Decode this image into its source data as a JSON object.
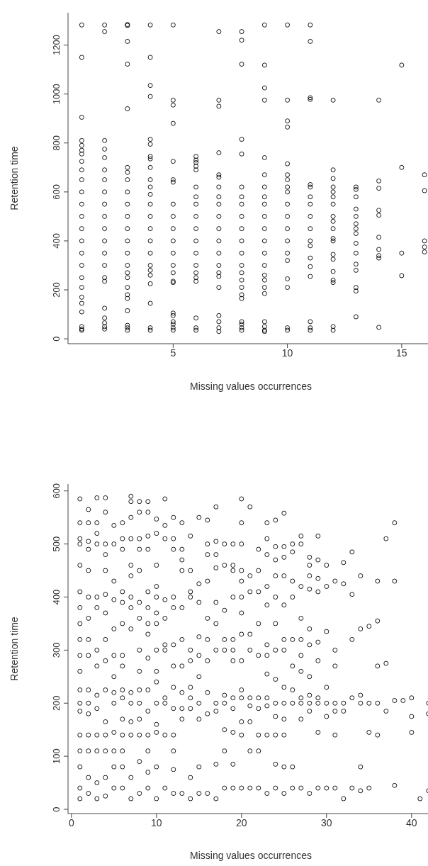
{
  "chart_data": [
    {
      "type": "scatter",
      "xlabel": "Missing values occurrences",
      "ylabel": "Retention time",
      "xlim": [
        0.4,
        16.4
      ],
      "ylim": [
        -20,
        1332
      ],
      "xticks": [
        5,
        10,
        15
      ],
      "yticks": [
        0,
        200,
        400,
        600,
        800,
        1000,
        1200
      ],
      "marker": "circle",
      "series": [
        {
          "color": "#000000",
          "x": [
            1,
            1,
            1,
            1,
            1,
            1,
            1,
            1,
            1,
            1,
            1,
            1,
            1,
            1,
            1,
            1,
            1,
            1,
            1,
            1,
            1,
            1,
            1,
            1,
            1,
            2,
            2,
            2,
            2,
            2,
            2,
            2,
            2,
            2,
            2,
            2,
            2,
            2,
            2,
            2,
            2,
            2,
            2,
            2,
            2,
            2,
            3,
            3,
            3,
            3,
            3,
            3,
            3,
            3,
            3,
            3,
            3,
            3,
            3,
            3,
            3,
            3,
            3,
            3,
            3,
            3,
            3,
            3,
            3,
            3,
            4,
            4,
            4,
            4,
            4,
            4,
            4,
            4,
            4,
            4,
            4,
            4,
            4,
            4,
            4,
            4,
            4,
            4,
            4,
            4,
            4,
            4,
            4,
            4,
            5,
            5,
            5,
            5,
            5,
            5,
            5,
            5,
            5,
            5,
            5,
            5,
            5,
            5,
            5,
            5,
            5,
            5,
            5,
            5,
            5,
            5,
            6,
            6,
            6,
            6,
            6,
            6,
            6,
            6,
            6,
            6,
            6,
            6,
            6,
            6,
            6,
            6,
            6,
            6,
            6,
            7,
            7,
            7,
            7,
            7,
            7,
            7,
            7,
            7,
            7,
            7,
            7,
            7,
            7,
            7,
            7,
            7,
            7,
            7,
            7,
            7,
            8,
            8,
            8,
            8,
            8,
            8,
            8,
            8,
            8,
            8,
            8,
            8,
            8,
            8,
            8,
            8,
            8,
            8,
            8,
            8,
            8,
            8,
            9,
            9,
            9,
            9,
            9,
            9,
            9,
            9,
            9,
            9,
            9,
            9,
            9,
            9,
            9,
            9,
            9,
            9,
            9,
            9,
            9,
            9,
            10,
            10,
            10,
            10,
            10,
            10,
            10,
            10,
            10,
            10,
            10,
            10,
            10,
            10,
            10,
            10,
            10,
            10,
            10,
            11,
            11,
            11,
            11,
            11,
            11,
            11,
            11,
            11,
            11,
            11,
            11,
            11,
            11,
            11,
            11,
            11,
            11,
            12,
            12,
            12,
            12,
            12,
            12,
            12,
            12,
            12,
            12,
            12,
            12,
            12,
            12,
            12,
            12,
            12,
            12,
            12,
            13,
            13,
            13,
            13,
            13,
            13,
            13,
            13,
            13,
            13,
            13,
            13,
            13,
            13,
            13,
            14,
            14,
            14,
            14,
            14,
            14,
            14,
            14,
            14,
            14,
            15,
            15,
            15,
            15,
            16,
            16,
            16,
            16,
            16
          ],
          "values": [
            1282,
            1150,
            905,
            810,
            790,
            770,
            755,
            725,
            690,
            650,
            600,
            550,
            500,
            450,
            400,
            350,
            300,
            250,
            210,
            170,
            145,
            110,
            50,
            40,
            35,
            1282,
            1255,
            810,
            775,
            740,
            690,
            650,
            600,
            550,
            500,
            450,
            400,
            350,
            300,
            250,
            235,
            125,
            85,
            65,
            50,
            40,
            1284,
            1280,
            1215,
            1122,
            940,
            700,
            680,
            650,
            600,
            550,
            500,
            450,
            400,
            350,
            300,
            270,
            250,
            210,
            180,
            165,
            115,
            55,
            45,
            35,
            1282,
            1150,
            1035,
            990,
            815,
            795,
            745,
            735,
            700,
            650,
            620,
            590,
            550,
            500,
            450,
            400,
            350,
            300,
            280,
            260,
            225,
            145,
            45,
            35,
            1282,
            975,
            955,
            880,
            725,
            650,
            640,
            550,
            500,
            450,
            400,
            350,
            300,
            270,
            235,
            230,
            105,
            95,
            70,
            60,
            45,
            35,
            745,
            730,
            720,
            705,
            690,
            620,
            580,
            550,
            500,
            450,
            400,
            350,
            300,
            270,
            250,
            235,
            85,
            45,
            35,
            1255,
            975,
            950,
            760,
            670,
            660,
            620,
            580,
            550,
            500,
            450,
            400,
            350,
            300,
            270,
            255,
            210,
            95,
            70,
            45,
            30,
            1255,
            1220,
            1122,
            815,
            755,
            620,
            580,
            550,
            500,
            450,
            400,
            350,
            300,
            270,
            240,
            210,
            180,
            165,
            70,
            60,
            45,
            35,
            1282,
            1118,
            1025,
            975,
            740,
            670,
            620,
            580,
            550,
            500,
            450,
            400,
            350,
            300,
            260,
            240,
            210,
            185,
            70,
            50,
            35,
            30,
            1282,
            975,
            890,
            865,
            715,
            670,
            650,
            620,
            600,
            550,
            500,
            450,
            400,
            350,
            320,
            245,
            210,
            45,
            35,
            1282,
            1215,
            985,
            978,
            630,
            620,
            580,
            550,
            500,
            450,
            400,
            380,
            330,
            295,
            255,
            70,
            45,
            35,
            975,
            690,
            655,
            620,
            600,
            580,
            550,
            500,
            480,
            450,
            410,
            400,
            345,
            325,
            275,
            240,
            230,
            50,
            35,
            620,
            610,
            580,
            530,
            500,
            470,
            450,
            430,
            390,
            350,
            305,
            280,
            210,
            195,
            90,
            975,
            645,
            615,
            525,
            505,
            415,
            365,
            340,
            330,
            47,
            1118,
            700,
            350,
            258,
            670,
            605,
            400,
            375,
            355
          ]
        }
      ]
    },
    {
      "type": "scatter",
      "xlabel": "Missing values occurrences",
      "ylabel": "Retention time",
      "xlim": [
        -0.4,
        42.6
      ],
      "ylim": [
        -8,
        613
      ],
      "xticks": [
        0,
        10,
        20,
        30,
        40
      ],
      "yticks": [
        0,
        100,
        200,
        300,
        400,
        500,
        600
      ],
      "marker": "circle",
      "series": [
        {
          "color": "#000000",
          "x": [
            1,
            1,
            1,
            1,
            1,
            1,
            1,
            1,
            1,
            1,
            1,
            1,
            1,
            1,
            1,
            1,
            1,
            1,
            1,
            2,
            2,
            2,
            2,
            2,
            2,
            2,
            2,
            2,
            2,
            2,
            2,
            2,
            2,
            2,
            2,
            3,
            3,
            3,
            3,
            3,
            3,
            3,
            3,
            3,
            3,
            3,
            3,
            3,
            3,
            4,
            4,
            4,
            4,
            4,
            4,
            4,
            4,
            4,
            4,
            4,
            4,
            4,
            4,
            4,
            5,
            5,
            5,
            5,
            5,
            5,
            5,
            5,
            5,
            5,
            5,
            5,
            5,
            6,
            6,
            6,
            6,
            6,
            6,
            6,
            6,
            6,
            6,
            6,
            6,
            6,
            6,
            6,
            7,
            7,
            7,
            7,
            7,
            7,
            7,
            7,
            7,
            7,
            7,
            7,
            7,
            7,
            7,
            8,
            8,
            8,
            8,
            8,
            8,
            8,
            8,
            8,
            8,
            8,
            8,
            8,
            8,
            8,
            9,
            9,
            9,
            9,
            9,
            9,
            9,
            9,
            9,
            9,
            9,
            9,
            9,
            9,
            9,
            10,
            10,
            10,
            10,
            10,
            10,
            10,
            10,
            10,
            10,
            10,
            10,
            10,
            10,
            10,
            11,
            11,
            11,
            11,
            11,
            11,
            11,
            11,
            11,
            11,
            11,
            12,
            12,
            12,
            12,
            12,
            12,
            12,
            12,
            12,
            12,
            12,
            12,
            12,
            13,
            13,
            13,
            13,
            13,
            13,
            13,
            13,
            13,
            13,
            13,
            14,
            14,
            14,
            14,
            14,
            14,
            14,
            14,
            14,
            14,
            14,
            15,
            15,
            15,
            15,
            15,
            15,
            15,
            15,
            15,
            15,
            16,
            16,
            16,
            16,
            16,
            16,
            16,
            16,
            16,
            16,
            17,
            17,
            17,
            17,
            17,
            17,
            17,
            17,
            17,
            17,
            17,
            18,
            18,
            18,
            18,
            18,
            18,
            18,
            18,
            18,
            18,
            19,
            19,
            19,
            19,
            19,
            19,
            19,
            19,
            19,
            19,
            19,
            19,
            20,
            20,
            20,
            20,
            20,
            20,
            20,
            20,
            20,
            20,
            20,
            20,
            20,
            20,
            21,
            21,
            21,
            21,
            21,
            21,
            21,
            21,
            21,
            21,
            22,
            22,
            22,
            22,
            22,
            22,
            22,
            22,
            22,
            22,
            23,
            23,
            23,
            23,
            23,
            23,
            23,
            23,
            23,
            23,
            23,
            23,
            24,
            24,
            24,
            24,
            24,
            24,
            24,
            24,
            24,
            24,
            24,
            24,
            24,
            25,
            25,
            25,
            25,
            25,
            25,
            25,
            25,
            25,
            25,
            25,
            25,
            25,
            26,
            26,
            26,
            26,
            26,
            26,
            26,
            26,
            26,
            26,
            27,
            27,
            27,
            27,
            27,
            27,
            27,
            27,
            27,
            27,
            27,
            28,
            28,
            28,
            28,
            28,
            28,
            28,
            28,
            28,
            28,
            28,
            29,
            29,
            29,
            29,
            29,
            29,
            29,
            29,
            29,
            29,
            30,
            30,
            30,
            30,
            30,
            30,
            30,
            31,
            31,
            31,
            31,
            31,
            31,
            31,
            32,
            32,
            32,
            32,
            32,
            33,
            33,
            33,
            33,
            33,
            34,
            34,
            34,
            34,
            34,
            34,
            35,
            35,
            35,
            35,
            36,
            36,
            36,
            36,
            36,
            37,
            37,
            37,
            38,
            38,
            38,
            38,
            39,
            40,
            40,
            40,
            41,
            42,
            42,
            42
          ],
          "values": [
            585,
            540,
            510,
            500,
            460,
            410,
            380,
            350,
            320,
            290,
            260,
            225,
            200,
            185,
            140,
            110,
            80,
            40,
            20,
            565,
            540,
            505,
            490,
            450,
            400,
            360,
            320,
            290,
            225,
            200,
            180,
            140,
            110,
            60,
            30,
            587,
            540,
            520,
            500,
            400,
            380,
            300,
            270,
            215,
            190,
            140,
            110,
            50,
            20,
            587,
            560,
            500,
            480,
            450,
            405,
            370,
            320,
            280,
            225,
            165,
            140,
            110,
            60,
            25,
            535,
            500,
            430,
            395,
            340,
            290,
            250,
            220,
            200,
            145,
            110,
            80,
            40,
            540,
            510,
            490,
            410,
            390,
            350,
            290,
            270,
            225,
            210,
            170,
            140,
            110,
            80,
            40,
            590,
            580,
            550,
            510,
            460,
            440,
            400,
            380,
            340,
            220,
            200,
            165,
            140,
            60,
            20,
            580,
            560,
            510,
            490,
            450,
            390,
            360,
            300,
            260,
            225,
            200,
            170,
            140,
            90,
            30,
            580,
            560,
            515,
            490,
            410,
            380,
            350,
            330,
            285,
            225,
            185,
            140,
            110,
            70,
            40,
            547,
            520,
            460,
            420,
            400,
            370,
            350,
            300,
            260,
            240,
            200,
            160,
            145,
            80,
            20,
            585,
            535,
            510,
            395,
            360,
            310,
            300,
            210,
            200,
            140,
            40,
            550,
            510,
            490,
            400,
            380,
            310,
            270,
            230,
            190,
            140,
            110,
            75,
            30,
            540,
            490,
            470,
            450,
            380,
            320,
            270,
            220,
            190,
            170,
            30,
            515,
            450,
            410,
            400,
            300,
            280,
            230,
            210,
            190,
            60,
            20,
            550,
            425,
            390,
            325,
            290,
            250,
            200,
            170,
            80,
            30,
            545,
            500,
            480,
            430,
            360,
            320,
            280,
            220,
            180,
            30,
            570,
            505,
            480,
            455,
            390,
            350,
            300,
            200,
            185,
            85,
            20,
            500,
            460,
            375,
            320,
            300,
            215,
            200,
            150,
            110,
            40,
            500,
            460,
            450,
            400,
            320,
            300,
            280,
            210,
            190,
            145,
            85,
            40,
            585,
            540,
            500,
            450,
            430,
            400,
            370,
            330,
            280,
            225,
            210,
            165,
            140,
            40,
            570,
            440,
            410,
            330,
            300,
            210,
            195,
            165,
            110,
            40,
            490,
            450,
            410,
            350,
            290,
            210,
            190,
            140,
            110,
            40,
            540,
            510,
            480,
            420,
            385,
            310,
            290,
            255,
            210,
            195,
            140,
            30,
            545,
            495,
            470,
            440,
            400,
            350,
            300,
            245,
            200,
            175,
            140,
            85,
            40,
            558,
            495,
            475,
            440,
            385,
            320,
            300,
            230,
            200,
            170,
            140,
            80,
            30,
            500,
            485,
            430,
            400,
            320,
            270,
            225,
            200,
            80,
            40,
            515,
            500,
            420,
            360,
            320,
            290,
            260,
            210,
            200,
            170,
            40,
            475,
            460,
            440,
            415,
            340,
            310,
            250,
            215,
            200,
            185,
            30,
            515,
            470,
            435,
            410,
            315,
            280,
            210,
            200,
            145,
            40,
            460,
            420,
            335,
            230,
            200,
            175,
            40,
            430,
            300,
            270,
            200,
            185,
            140,
            40,
            465,
            425,
            200,
            185,
            20,
            485,
            405,
            320,
            210,
            40,
            440,
            340,
            215,
            200,
            80,
            35,
            345,
            200,
            145,
            40,
            430,
            355,
            270,
            200,
            140,
            510,
            275,
            185,
            540,
            430,
            205,
            45,
            205,
            210,
            175,
            145,
            20,
            180,
            35,
            200
          ]
        }
      ]
    }
  ]
}
